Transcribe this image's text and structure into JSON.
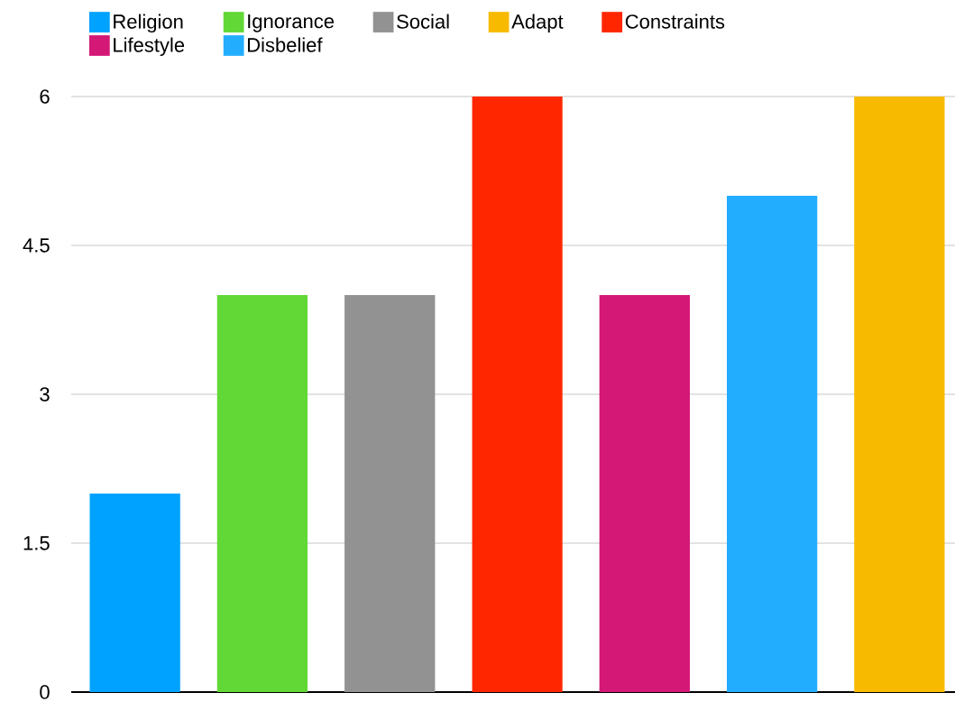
{
  "chart_data": {
    "type": "bar",
    "categories": [
      null,
      null,
      null,
      null,
      null,
      null,
      null
    ],
    "series": [
      {
        "name": "Religion",
        "color": "#00a2ff",
        "values": [
          2,
          null,
          null,
          null,
          null,
          null,
          null
        ]
      },
      {
        "name": "Ignorance",
        "color": "#61d836",
        "values": [
          null,
          4,
          null,
          null,
          null,
          null,
          null
        ]
      },
      {
        "name": "Social",
        "color": "#929292",
        "values": [
          null,
          null,
          4,
          null,
          null,
          null,
          null
        ]
      },
      {
        "name": "Adapt",
        "color": "#f8ba00",
        "values": [
          null,
          null,
          null,
          null,
          null,
          null,
          6
        ]
      },
      {
        "name": "Constraints",
        "color": "#ff2600",
        "values": [
          null,
          null,
          null,
          6,
          null,
          null,
          null
        ]
      },
      {
        "name": "Lifestyle",
        "color": "#d41876",
        "values": [
          null,
          null,
          null,
          null,
          4,
          null,
          null
        ]
      },
      {
        "name": "Disbelief",
        "color": "#23adff",
        "values": [
          null,
          null,
          null,
          null,
          null,
          5,
          null
        ]
      }
    ],
    "ylim": [
      0,
      6
    ],
    "yticks": [
      0,
      1.5,
      3,
      4.5,
      6
    ],
    "grid": "y",
    "legend": "top",
    "tick_labels": "y"
  }
}
